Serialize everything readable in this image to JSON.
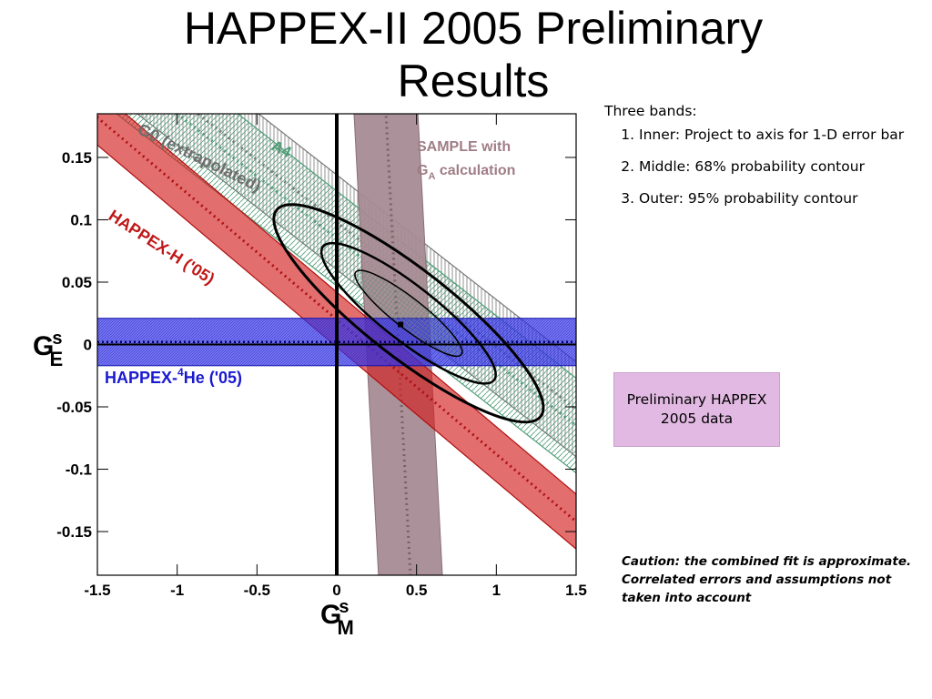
{
  "slide": {
    "title": "HAPPEX-II 2005 Preliminary Results"
  },
  "notes": {
    "heading": "Three bands:",
    "items": [
      "Inner: Project to axis for 1-D error bar",
      "Middle: 68% probability contour",
      "Outer: 95% probability contour"
    ]
  },
  "prelim_box": {
    "text": "Preliminary HAPPEX 2005 data",
    "color": "#e2b9e2"
  },
  "caution": {
    "text": "Caution: the combined fit is approximate.  Correlated errors and assumptions not taken into account"
  },
  "chart_data": {
    "type": "scatter",
    "xlabel": "G",
    "xlabel_sup": "s",
    "xlabel_sub": "M",
    "ylabel": "G",
    "ylabel_sup": "s",
    "ylabel_sub": "E",
    "xlim": [
      -1.5,
      1.5
    ],
    "ylim": [
      -0.185,
      0.185
    ],
    "x_ticks": [
      "-1.5",
      "-1",
      "-0.5",
      "0",
      "0.5",
      "1",
      "1.5"
    ],
    "x_tick_values": [
      -1.5,
      -1,
      -0.5,
      0,
      0.5,
      1,
      1.5
    ],
    "y_ticks": [
      "0.15",
      "0.1",
      "0.05",
      "0",
      "-0.05",
      "-0.1",
      "-0.15"
    ],
    "y_tick_values": [
      0.15,
      0.1,
      0.05,
      0,
      -0.05,
      -0.1,
      -0.15
    ],
    "best_fit_point": {
      "x": 0.4,
      "y": 0.016
    },
    "bands": [
      {
        "label": "G0 (extrapolated)",
        "color": "#777777",
        "slope": -0.1,
        "center_intercept": 0.098,
        "half_width": 0.038
      },
      {
        "label": "A4",
        "color": "#4e9d76",
        "slope": -0.1,
        "center_intercept": 0.085,
        "half_width": 0.038
      },
      {
        "label": "HAPPEX-H ('05)",
        "color": "#d42020",
        "slope": -0.108,
        "center_intercept": 0.02,
        "half_width": 0.022
      },
      {
        "label_prefix": "HAPPEX-",
        "label_sup": "4",
        "label_suffix": "He ('05)",
        "color": "#2222ee",
        "center": 0.002,
        "half_width": 0.019
      },
      {
        "label_line1": "SAMPLE with",
        "label_line2_main": "G",
        "label_line2_sub": "A",
        "label_line2_rest": " calculation",
        "color": "#a78b93",
        "center_x_top": 0.3,
        "center_x_bottom": 0.47,
        "half_width": 0.2
      }
    ],
    "contours": [
      {
        "level": "95%",
        "cx": 0.45,
        "cy": 0.025,
        "rx": 1.05,
        "ry": 0.035,
        "tilt_slope": -0.1
      },
      {
        "level": "68%",
        "cx": 0.45,
        "cy": 0.025,
        "rx": 0.68,
        "ry": 0.022,
        "tilt_slope": -0.1
      },
      {
        "level": "1-D",
        "cx": 0.45,
        "cy": 0.025,
        "rx": 0.42,
        "ry": 0.012,
        "tilt_slope": -0.1
      }
    ]
  }
}
